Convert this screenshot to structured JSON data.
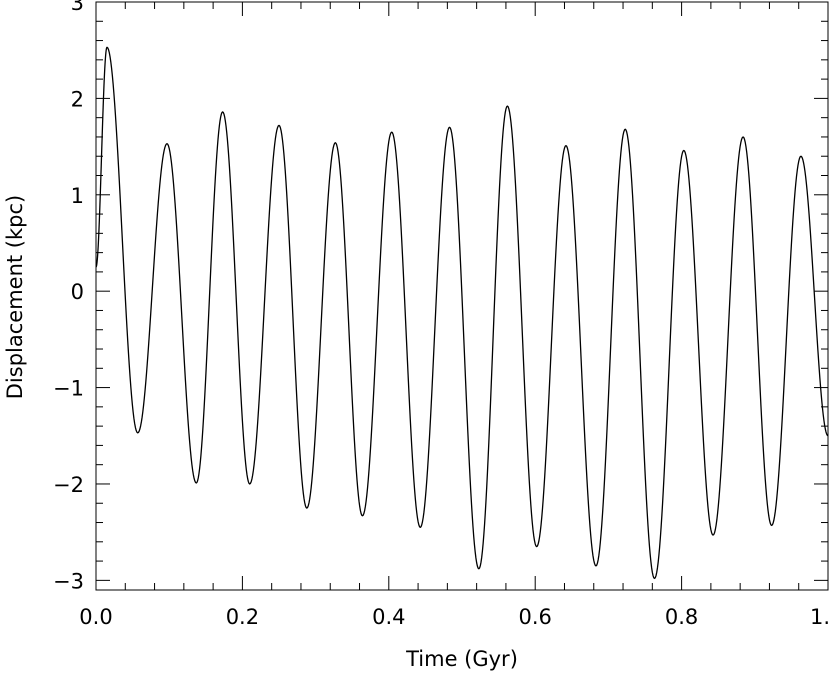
{
  "chart_data": {
    "type": "line",
    "title": "",
    "xlabel": "Time (Gyr)",
    "ylabel": "Displacement (kpc)",
    "xlim": [
      0.0,
      1.0
    ],
    "ylim": [
      -3.1,
      3.0
    ],
    "grid": false,
    "legend": "none",
    "x_ticks": [
      0.0,
      0.2,
      0.4,
      0.6,
      0.8,
      1.0
    ],
    "x_tick_labels": [
      "0.0",
      "0.2",
      "0.4",
      "0.6",
      "0.8",
      "1."
    ],
    "y_ticks": [
      -3,
      -2,
      -1,
      0,
      1,
      2,
      3
    ],
    "y_tick_labels": [
      "−3",
      "−2",
      "−1",
      "0",
      "1",
      "2",
      "3"
    ],
    "series": [
      {
        "color": "#000000",
        "extrema_x": [
          0.0,
          0.015,
          0.057,
          0.097,
          0.137,
          0.173,
          0.21,
          0.25,
          0.288,
          0.327,
          0.364,
          0.404,
          0.443,
          0.483,
          0.523,
          0.562,
          0.602,
          0.642,
          0.683,
          0.723,
          0.763,
          0.803,
          0.843,
          0.884,
          0.923,
          0.963,
          1.0
        ],
        "extrema_y": [
          0.25,
          2.53,
          -1.47,
          1.53,
          -1.99,
          1.86,
          -2.0,
          1.72,
          -2.25,
          1.54,
          -2.33,
          1.65,
          -2.45,
          1.7,
          -2.88,
          1.92,
          -2.65,
          1.51,
          -2.85,
          1.68,
          -2.98,
          1.46,
          -2.53,
          1.6,
          -2.43,
          1.4,
          -1.5
        ]
      }
    ]
  }
}
